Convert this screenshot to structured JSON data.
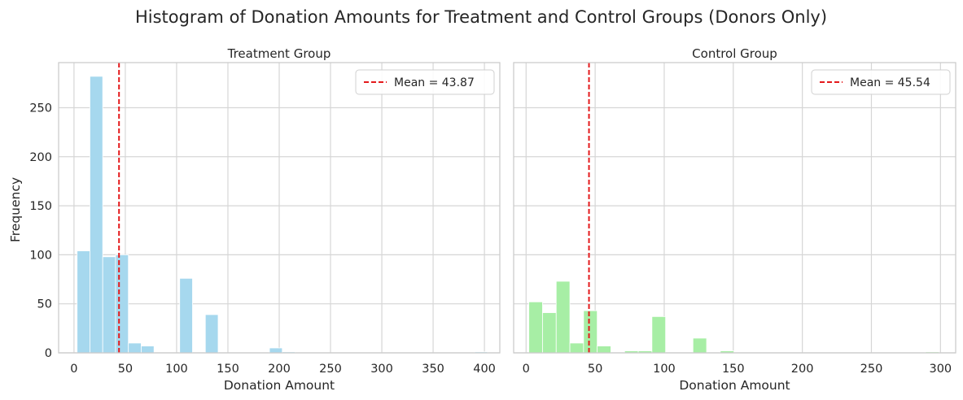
{
  "chart_data": {
    "suptitle": "Histogram of Donation Amounts for Treatment and Control Groups (Donors Only)",
    "shared_ylabel": "Frequency",
    "panels": [
      {
        "type": "bar",
        "title": "Treatment Group",
        "xlabel": "Donation Amount",
        "ylabel": "Frequency",
        "xlim": [
          -15,
          415
        ],
        "ylim": [
          0,
          296
        ],
        "xticks": [
          0,
          50,
          100,
          150,
          200,
          250,
          300,
          350,
          400
        ],
        "yticks": [
          0,
          50,
          100,
          150,
          200,
          250
        ],
        "color": "#a6d8ee",
        "bin_width": 12.5,
        "bin_starts": [
          3,
          15.5,
          28,
          40.5,
          53,
          65.5,
          78,
          90.5,
          103,
          115.5,
          128,
          140.5,
          153,
          165.5,
          178,
          190.5,
          203,
          215.5,
          228,
          240.5,
          253,
          265.5,
          278,
          290.5,
          303,
          315.5,
          328,
          340.5,
          353,
          365.5,
          378,
          390.5
        ],
        "values": [
          104,
          282,
          98,
          100,
          10,
          7,
          0,
          0,
          76,
          0,
          39,
          0,
          0,
          0,
          0,
          5,
          1,
          0,
          0,
          0,
          0,
          0,
          0,
          0,
          0,
          0,
          0,
          0,
          0,
          0,
          0,
          1
        ],
        "mean": 43.87,
        "legend": "Mean = 43.87",
        "mean_color": "#e41a1c"
      },
      {
        "type": "bar",
        "title": "Control Group",
        "xlabel": "Donation Amount",
        "ylabel": "",
        "xlim": [
          -9,
          311
        ],
        "ylim": [
          0,
          296
        ],
        "xticks": [
          0,
          50,
          100,
          150,
          200,
          250,
          300
        ],
        "yticks": [
          0,
          50,
          100,
          150,
          200,
          250
        ],
        "color": "#a7eea5",
        "bin_width": 9.9,
        "bin_starts": [
          2,
          11.9,
          21.8,
          31.7,
          41.6,
          51.5,
          61.4,
          71.3,
          81.2,
          91.1,
          101,
          110.9,
          120.8,
          130.7,
          140.6,
          150.5,
          160.4,
          170.3,
          180.2,
          190.1,
          200,
          209.9,
          219.8,
          229.7,
          239.6,
          249.5,
          259.4,
          269.3,
          279.2,
          289.1
        ],
        "values": [
          52,
          41,
          73,
          10,
          43,
          7,
          0,
          2,
          2,
          37,
          0,
          0,
          15,
          0,
          2,
          0,
          0,
          0,
          0,
          0,
          0,
          0,
          0,
          0,
          0,
          0,
          0,
          0,
          0,
          1
        ],
        "mean": 45.54,
        "legend": "Mean = 45.54",
        "mean_color": "#e41a1c"
      }
    ]
  }
}
